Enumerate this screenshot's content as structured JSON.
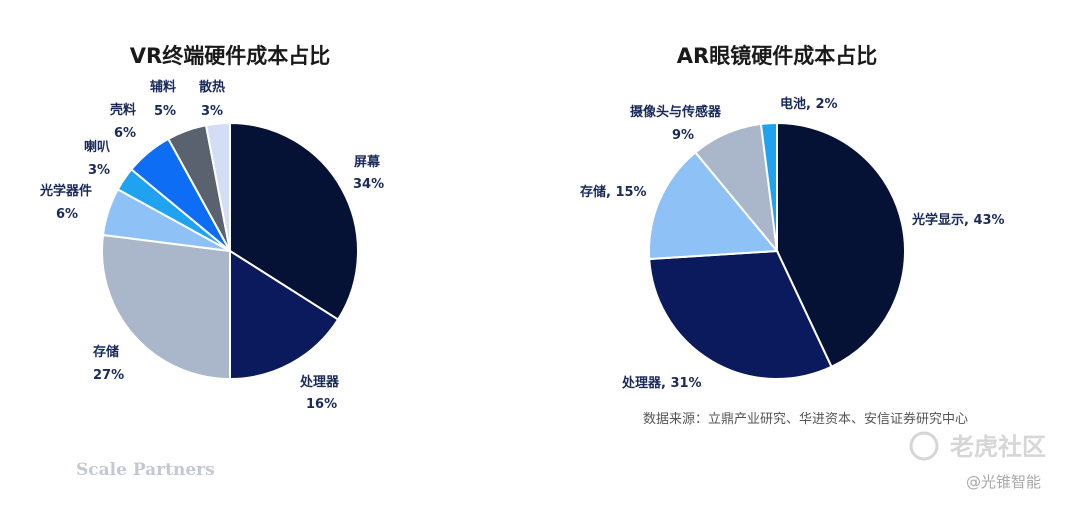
{
  "chart_data": [
    {
      "type": "pie",
      "title": "VR终端硬件成本占比",
      "slices": [
        {
          "label": "屏幕",
          "value": 34,
          "value_label": "34%",
          "color": "#061235"
        },
        {
          "label": "处理器",
          "value": 16,
          "value_label": "16%",
          "color": "#0b1a5c"
        },
        {
          "label": "存储",
          "value": 27,
          "value_label": "27%",
          "color": "#aab6c9"
        },
        {
          "label": "光学器件",
          "value": 6,
          "value_label": "6%",
          "color": "#8ec2f7"
        },
        {
          "label": "喇叭",
          "value": 3,
          "value_label": "3%",
          "color": "#1fa3f0"
        },
        {
          "label": "壳料",
          "value": 6,
          "value_label": "6%",
          "color": "#0d6ef5"
        },
        {
          "label": "辅料",
          "value": 5,
          "value_label": "5%",
          "color": "#5a6270"
        },
        {
          "label": "散热",
          "value": 3,
          "value_label": "3%",
          "color": "#d3def5"
        }
      ]
    },
    {
      "type": "pie",
      "title": "AR眼镜硬件成本占比",
      "slices": [
        {
          "label": "光学显示",
          "value": 43,
          "value_label": "光学显示, 43%",
          "color": "#061235"
        },
        {
          "label": "处理器",
          "value": 31,
          "value_label": "处理器, 31%",
          "color": "#0b1a5c"
        },
        {
          "label": "存储",
          "value": 15,
          "value_label": "存储, 15%",
          "color": "#8ec2f7"
        },
        {
          "label": "摄像头与传感器",
          "value": 9,
          "value_label": "摄像头与传感器, 9%",
          "color": "#aab6c9"
        },
        {
          "label": "电池",
          "value": 2,
          "value_label": "电池, 2%",
          "color": "#1fa3f0"
        }
      ]
    }
  ],
  "source_note": "数据来源：立鼎产业研究、华进资本、安信证券研究中心",
  "brand": "Scale Partners",
  "watermark": "老虎社区",
  "watermark_handle": "@光锥智能"
}
